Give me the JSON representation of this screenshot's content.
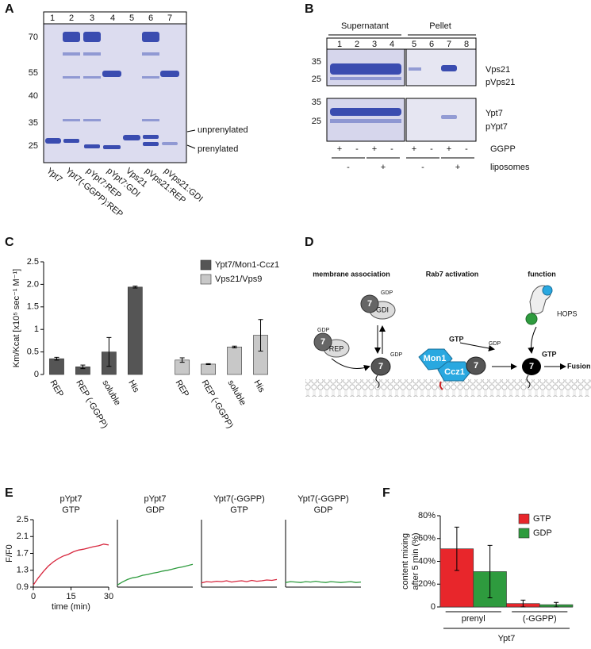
{
  "panel_labels": [
    "A",
    "B",
    "C",
    "D",
    "E",
    "F"
  ],
  "gel_a": {
    "lanes": [
      1,
      2,
      3,
      4,
      5,
      6,
      7
    ],
    "mw": [
      70,
      55,
      40,
      35,
      25
    ],
    "band_labels": [
      "unprenylated",
      "prenylated"
    ],
    "lane_labels": [
      "Ypt7",
      "Ypt7(-GGPP):REP",
      "pYpt7:REP",
      "pYpt7:GDI",
      "Vps21",
      "pVps21:REP",
      "pVps21:GDI"
    ]
  },
  "gel_b": {
    "headers": [
      "Supernatant",
      "Pellet"
    ],
    "lanes": [
      1,
      2,
      3,
      4,
      5,
      6,
      7,
      8
    ],
    "mw": [
      35,
      25,
      35,
      25
    ],
    "band_labels": [
      "Vps21",
      "pVps21",
      "Ypt7",
      "pYpt7"
    ],
    "rows": [
      "GGPP",
      "liposomes"
    ],
    "ggpp": [
      "+",
      "-",
      "+",
      "-",
      "+",
      "-",
      "+",
      "-"
    ],
    "liposomes": [
      "-",
      "+",
      "-",
      "+"
    ]
  },
  "diagram": {
    "titles": [
      "membrane association",
      "Rab7 activation",
      "function"
    ],
    "labels": {
      "rab": "7",
      "gdp": "GDP",
      "gtp": "GTP",
      "gdi": "GDI",
      "rep": "REP",
      "mon1": "Mon1",
      "ccz1": "Ccz1",
      "hops": "HOPS",
      "fusion": "Fusion"
    }
  },
  "chart_data": [
    {
      "type": "bar",
      "ylabel": "Km/Kcat [x10⁵ sec⁻¹ M⁻¹]",
      "categories": [
        "REP",
        "REP (-GGPP)",
        "soluble",
        "His",
        "REP",
        "REP (-GGPP)",
        "soluble",
        "His"
      ],
      "series": [
        {
          "name": "Ypt7/Mon1-Ccz1",
          "color": "#555555",
          "values": [
            0.35,
            0.17,
            0.5,
            1.94,
            null,
            null,
            null,
            null
          ],
          "errors": [
            0.03,
            0.04,
            0.32,
            0.02,
            null,
            null,
            null,
            null
          ]
        },
        {
          "name": "Vps21/Vps9",
          "color": "#c8c8c8",
          "values": [
            null,
            null,
            null,
            null,
            0.32,
            0.23,
            0.61,
            0.87
          ],
          "errors": [
            null,
            null,
            null,
            null,
            0.05,
            0.01,
            0.02,
            0.35
          ]
        }
      ],
      "ylim": [
        0,
        2.5
      ],
      "yticks": [
        0,
        0.5,
        1,
        1.5,
        {
          "value": 2,
          "label": "2.0"
        },
        2.5
      ],
      "legend": "upper right"
    },
    {
      "type": "line",
      "title": [
        "pYpt7",
        "GTP"
      ],
      "ylabel": "F/F0",
      "xlabel": "time (min)",
      "color": "#d7263d",
      "x": [
        0,
        2,
        4,
        6,
        8,
        10,
        12,
        14,
        16,
        18,
        20,
        22,
        24,
        26,
        28,
        30
      ],
      "values": [
        0.95,
        1.12,
        1.27,
        1.4,
        1.5,
        1.58,
        1.64,
        1.68,
        1.74,
        1.78,
        1.8,
        1.83,
        1.86,
        1.88,
        1.92,
        1.9
      ],
      "xlim": [
        0,
        30
      ],
      "ylim": [
        0.9,
        2.5
      ],
      "xticks": [
        0,
        15,
        30
      ],
      "yticks": [
        0.9,
        1.3,
        1.7,
        2.1,
        2.5
      ]
    },
    {
      "type": "line",
      "title": [
        "pYpt7",
        "GDP"
      ],
      "color": "#2e9b3e",
      "x": [
        0,
        2,
        4,
        6,
        8,
        10,
        12,
        14,
        16,
        18,
        20,
        22,
        24,
        26,
        28,
        30
      ],
      "values": [
        0.95,
        1.02,
        1.08,
        1.12,
        1.14,
        1.18,
        1.2,
        1.23,
        1.25,
        1.28,
        1.3,
        1.33,
        1.36,
        1.38,
        1.41,
        1.44
      ],
      "xlim": [
        0,
        30
      ],
      "ylim": [
        0.9,
        2.5
      ]
    },
    {
      "type": "line",
      "title": [
        "Ypt7(-GGPP)",
        "GTP"
      ],
      "color": "#d7263d",
      "x": [
        0,
        2,
        4,
        6,
        8,
        10,
        12,
        14,
        16,
        18,
        20,
        22,
        24,
        26,
        28,
        30
      ],
      "values": [
        1.0,
        1.03,
        1.02,
        1.04,
        1.03,
        1.05,
        1.02,
        1.04,
        1.05,
        1.03,
        1.06,
        1.04,
        1.05,
        1.07,
        1.06,
        1.08
      ],
      "xlim": [
        0,
        30
      ],
      "ylim": [
        0.9,
        2.5
      ]
    },
    {
      "type": "line",
      "title": [
        "Ypt7(-GGPP)",
        "GDP"
      ],
      "color": "#2e9b3e",
      "x": [
        0,
        2,
        4,
        6,
        8,
        10,
        12,
        14,
        16,
        18,
        20,
        22,
        24,
        26,
        28,
        30
      ],
      "values": [
        1.01,
        1.03,
        1.02,
        1.01,
        1.03,
        1.02,
        1.04,
        1.02,
        1.01,
        1.03,
        1.02,
        1.01,
        1.02,
        1.03,
        1.01,
        1.02
      ],
      "xlim": [
        0,
        30
      ],
      "ylim": [
        0.9,
        2.5
      ]
    },
    {
      "type": "bar",
      "ylabel": [
        "content mixing",
        "after 5 min (%)"
      ],
      "categories": [
        "prenyl",
        "(-GGPP)"
      ],
      "group_label": "Ypt7",
      "series": [
        {
          "name": "GTP",
          "color": "#e8262b",
          "values": [
            51,
            3
          ],
          "errors": [
            19,
            3
          ]
        },
        {
          "name": "GDP",
          "color": "#2e9b3e",
          "values": [
            31,
            2
          ],
          "errors": [
            23,
            2
          ]
        }
      ],
      "ylim": [
        0,
        80
      ],
      "yticks": [
        0,
        {
          "value": 20,
          "label": "20%"
        },
        {
          "value": 40,
          "label": "40%"
        },
        {
          "value": 60,
          "label": "60%"
        },
        {
          "value": 80,
          "label": "80%"
        }
      ],
      "legend": "upper right"
    }
  ]
}
